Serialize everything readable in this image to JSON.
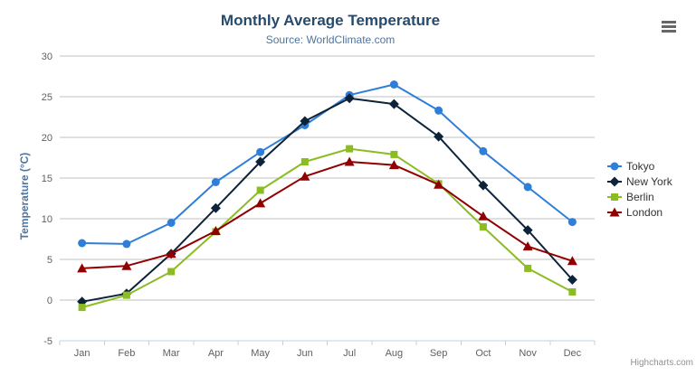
{
  "chart": {
    "credits": "Highcharts.com",
    "context_menu_icon": "hamburger-icon"
  },
  "theme": {
    "background": "#ffffff",
    "title-color": "#274b6d",
    "subtitle-color": "#4d759e",
    "axis-title-color": "#4d759e",
    "axis-label-color": "#606060",
    "grid-color": "#c0c0c0",
    "axis-line-color": "#c0d0e0",
    "legend-text-color": "#333333",
    "credits-color": "#909090",
    "menu-icon-color": "#666666"
  },
  "chart_data": {
    "type": "line",
    "title": "Monthly Average Temperature",
    "subtitle": "Source: WorldClimate.com",
    "categories": [
      "Jan",
      "Feb",
      "Mar",
      "Apr",
      "May",
      "Jun",
      "Jul",
      "Aug",
      "Sep",
      "Oct",
      "Nov",
      "Dec"
    ],
    "xlabel": "",
    "ylabel": "Temperature (°C)",
    "ylim": [
      -5,
      30
    ],
    "ytick_step": 5,
    "grid": true,
    "legend_position": "right",
    "series": [
      {
        "name": "Tokyo",
        "color": "#2f7ed8",
        "marker": "circle",
        "values": [
          7.0,
          6.9,
          9.5,
          14.5,
          18.2,
          21.5,
          25.2,
          26.5,
          23.3,
          18.3,
          13.9,
          9.6
        ]
      },
      {
        "name": "New York",
        "color": "#0d233a",
        "marker": "diamond",
        "values": [
          -0.2,
          0.8,
          5.7,
          11.3,
          17.0,
          22.0,
          24.8,
          24.1,
          20.1,
          14.1,
          8.6,
          2.5
        ]
      },
      {
        "name": "Berlin",
        "color": "#8bbc21",
        "marker": "square",
        "values": [
          -0.9,
          0.6,
          3.5,
          8.4,
          13.5,
          17.0,
          18.6,
          17.9,
          14.3,
          9.0,
          3.9,
          1.0
        ]
      },
      {
        "name": "London",
        "color": "#910000",
        "marker": "triangle",
        "values": [
          3.9,
          4.2,
          5.7,
          8.5,
          11.9,
          15.2,
          17.0,
          16.6,
          14.2,
          10.3,
          6.6,
          4.8
        ]
      }
    ]
  }
}
